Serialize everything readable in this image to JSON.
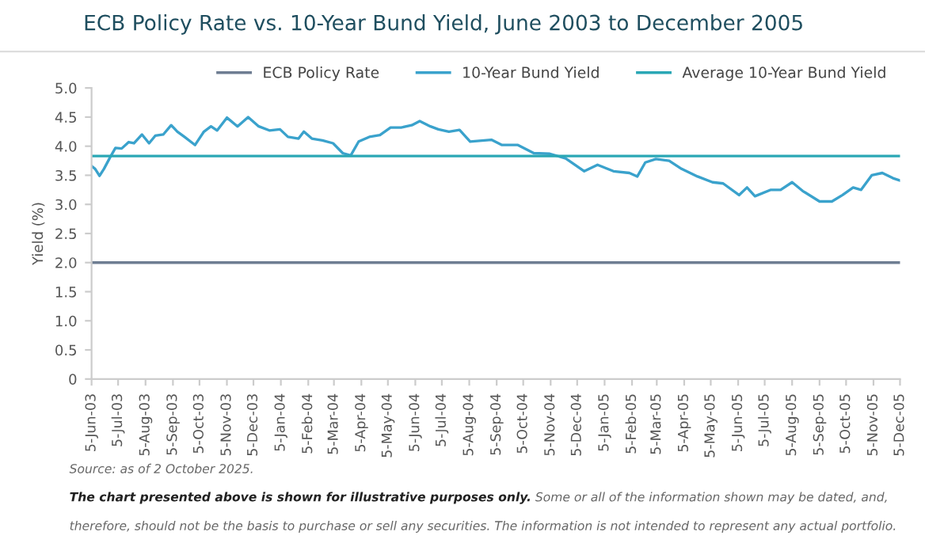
{
  "chart_data": {
    "type": "line",
    "title": "ECB Policy Rate vs. 10-Year Bund Yield, June 2003 to December 2005",
    "ylabel": "Yield (%)",
    "series": [
      {
        "name": "ECB Policy Rate",
        "color": "#6e7d92",
        "x": [
          "2003-06-05",
          "2005-12-05"
        ],
        "values": [
          2.0,
          2.0
        ]
      },
      {
        "name": "10-Year Bund Yield",
        "color": "#3aa2cc",
        "x": [
          "2003-06-05",
          "2003-06-09",
          "2003-06-14",
          "2003-06-19",
          "2003-06-26",
          "2003-07-02",
          "2003-07-09",
          "2003-07-17",
          "2003-07-23",
          "2003-08-01",
          "2003-08-09",
          "2003-08-16",
          "2003-08-25",
          "2003-09-03",
          "2003-09-10",
          "2003-09-18",
          "2003-09-30",
          "2003-10-10",
          "2003-10-18",
          "2003-10-25",
          "2003-11-05",
          "2003-11-17",
          "2003-11-29",
          "2003-12-11",
          "2003-12-23",
          "2004-01-04",
          "2004-01-13",
          "2004-01-25",
          "2004-01-31",
          "2004-02-09",
          "2004-02-21",
          "2004-03-04",
          "2004-03-15",
          "2004-03-24",
          "2004-04-02",
          "2004-04-14",
          "2004-04-26",
          "2004-05-08",
          "2004-05-20",
          "2004-06-01",
          "2004-06-10",
          "2004-06-22",
          "2004-07-01",
          "2004-07-13",
          "2004-07-25",
          "2004-08-06",
          "2004-08-30",
          "2004-09-11",
          "2004-09-29",
          "2004-10-17",
          "2004-11-04",
          "2004-11-22",
          "2004-12-13",
          "2004-12-28",
          "2005-01-15",
          "2005-02-02",
          "2005-02-11",
          "2005-02-20",
          "2005-03-04",
          "2005-03-19",
          "2005-04-02",
          "2005-04-20",
          "2005-05-07",
          "2005-05-19",
          "2005-06-06",
          "2005-06-15",
          "2005-06-24",
          "2005-07-12",
          "2005-07-23",
          "2005-08-05",
          "2005-08-17",
          "2005-09-05",
          "2005-09-19",
          "2005-10-01",
          "2005-10-13",
          "2005-10-22",
          "2005-11-03",
          "2005-11-15",
          "2005-11-27",
          "2005-12-05"
        ],
        "values": [
          3.66,
          3.61,
          3.49,
          3.61,
          3.81,
          3.97,
          3.96,
          4.07,
          4.05,
          4.2,
          4.05,
          4.18,
          4.2,
          4.36,
          4.25,
          4.16,
          4.02,
          4.25,
          4.34,
          4.27,
          4.49,
          4.34,
          4.5,
          4.34,
          4.27,
          4.29,
          4.16,
          4.13,
          4.25,
          4.13,
          4.1,
          4.05,
          3.88,
          3.84,
          4.08,
          4.16,
          4.19,
          4.32,
          4.32,
          4.36,
          4.43,
          4.34,
          4.29,
          4.25,
          4.28,
          4.08,
          4.11,
          4.02,
          4.02,
          3.88,
          3.87,
          3.79,
          3.57,
          3.68,
          3.57,
          3.54,
          3.48,
          3.72,
          3.78,
          3.75,
          3.61,
          3.48,
          3.38,
          3.36,
          3.16,
          3.29,
          3.14,
          3.25,
          3.25,
          3.38,
          3.23,
          3.05,
          3.05,
          3.16,
          3.29,
          3.25,
          3.5,
          3.54,
          3.45,
          3.41
        ]
      },
      {
        "name": "Average 10-Year Bund Yield",
        "color": "#2aa7b5",
        "x": [
          "2003-06-05",
          "2005-12-05"
        ],
        "values": [
          3.83,
          3.83
        ]
      }
    ],
    "xlim": [
      "2003-06-05",
      "2005-12-05"
    ],
    "xticks": [
      {
        "value": "2003-06-05",
        "label": "5-Jun-03"
      },
      {
        "value": "2003-07-05",
        "label": "5-Jul-03"
      },
      {
        "value": "2003-08-05",
        "label": "5-Aug-03"
      },
      {
        "value": "2003-09-05",
        "label": "5-Sep-03"
      },
      {
        "value": "2003-10-05",
        "label": "5-Oct-03"
      },
      {
        "value": "2003-11-05",
        "label": "5-Nov-03"
      },
      {
        "value": "2003-12-05",
        "label": "5-Dec-03"
      },
      {
        "value": "2004-01-05",
        "label": "5-Jan-04"
      },
      {
        "value": "2004-02-05",
        "label": "5-Feb-04"
      },
      {
        "value": "2004-03-05",
        "label": "5-Mar-04"
      },
      {
        "value": "2004-04-05",
        "label": "5-Apr-04"
      },
      {
        "value": "2004-05-05",
        "label": "5-May-04"
      },
      {
        "value": "2004-06-05",
        "label": "5-Jun-04"
      },
      {
        "value": "2004-07-05",
        "label": "5-Jul-04"
      },
      {
        "value": "2004-08-05",
        "label": "5-Aug-04"
      },
      {
        "value": "2004-09-05",
        "label": "5-Sep-04"
      },
      {
        "value": "2004-10-05",
        "label": "5-Oct-04"
      },
      {
        "value": "2004-11-05",
        "label": "5-Nov-04"
      },
      {
        "value": "2004-12-05",
        "label": "5-Dec-04"
      },
      {
        "value": "2005-01-05",
        "label": "5-Jan-05"
      },
      {
        "value": "2005-02-05",
        "label": "5-Feb-05"
      },
      {
        "value": "2005-03-05",
        "label": "5-Mar-05"
      },
      {
        "value": "2005-04-05",
        "label": "5-Apr-05"
      },
      {
        "value": "2005-05-05",
        "label": "5-May-05"
      },
      {
        "value": "2005-06-05",
        "label": "5-Jun-05"
      },
      {
        "value": "2005-07-05",
        "label": "5-Jul-05"
      },
      {
        "value": "2005-08-05",
        "label": "5-Aug-05"
      },
      {
        "value": "2005-09-05",
        "label": "5-Sep-05"
      },
      {
        "value": "2005-10-05",
        "label": "5-Oct-05"
      },
      {
        "value": "2005-11-05",
        "label": "5-Nov-05"
      },
      {
        "value": "2005-12-05",
        "label": "5-Dec-05"
      }
    ],
    "ylim": [
      0,
      5.0
    ],
    "yticks": [
      0,
      {
        "value": 0.5,
        "label": "0.5"
      },
      {
        "value": 1.0,
        "label": "1.0"
      },
      {
        "value": 1.5,
        "label": "1.5"
      },
      {
        "value": 2.0,
        "label": "2.0"
      },
      {
        "value": 2.5,
        "label": "2.5"
      },
      {
        "value": 3.0,
        "label": "3.0"
      },
      {
        "value": 3.5,
        "label": "3.5"
      },
      {
        "value": 4.0,
        "label": "4.0"
      },
      {
        "value": 4.5,
        "label": "4.5"
      },
      {
        "value": 5.0,
        "label": "5.0"
      }
    ],
    "grid": false,
    "legend": "top right",
    "annotations": [
      "Source: as of 2 October 2025.",
      "The chart presented above is shown for illustrative purposes only.",
      "Some or all of the information shown may be dated, and, therefore, should not be the basis to purchase or sell any securities. The information is not intended to represent any actual portfolio."
    ]
  }
}
